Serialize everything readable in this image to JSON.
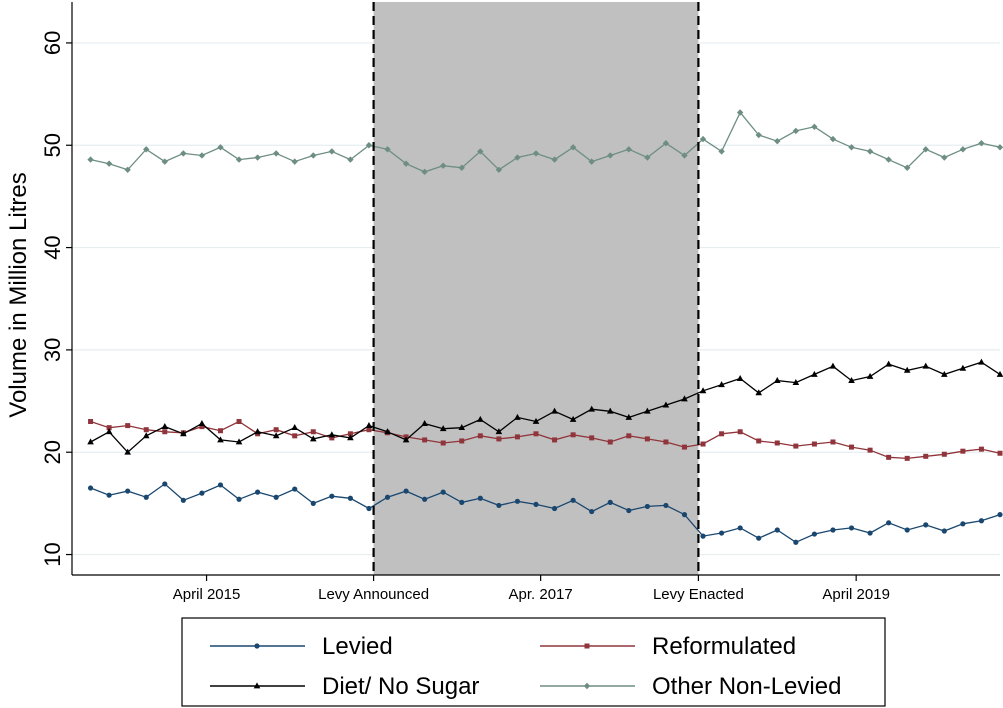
{
  "chart_data": {
    "type": "line",
    "title": "",
    "xlabel": "",
    "ylabel": "Volume in Million Litres",
    "ylim": [
      8,
      64
    ],
    "xlim": [
      0,
      100
    ],
    "y_ticks": [
      10,
      20,
      30,
      40,
      50,
      60
    ],
    "x_ticks": [
      {
        "x": 14.5,
        "label": "April 2015"
      },
      {
        "x": 32.5,
        "label": "Levy Announced"
      },
      {
        "x": 50.5,
        "label": "Apr. 2017"
      },
      {
        "x": 67.5,
        "label": "Levy Enacted"
      },
      {
        "x": 84.5,
        "label": "April 2019"
      }
    ],
    "shaded_region": [
      32.5,
      67.5
    ],
    "event_lines": [
      32.5,
      67.5
    ],
    "grid": true,
    "legend_position": "bottom",
    "series": [
      {
        "name": "Levied",
        "color": "#1a476f",
        "marker": "circle",
        "x": [
          2,
          4,
          6,
          8,
          10,
          12,
          14,
          16,
          18,
          20,
          22,
          24,
          26,
          28,
          30,
          32,
          34,
          36,
          38,
          40,
          42,
          44,
          46,
          48,
          50,
          52,
          54,
          56,
          58,
          60,
          62,
          64,
          66,
          68,
          70,
          72,
          74,
          76,
          78,
          80,
          82,
          84,
          86,
          88,
          90,
          92,
          94,
          96,
          98,
          100
        ],
        "values": [
          16.5,
          15.8,
          16.2,
          15.6,
          16.9,
          15.3,
          16.0,
          16.8,
          15.4,
          16.1,
          15.6,
          16.4,
          15.0,
          15.7,
          15.5,
          14.5,
          15.6,
          16.2,
          15.4,
          16.1,
          15.1,
          15.5,
          14.8,
          15.2,
          14.9,
          14.5,
          15.3,
          14.2,
          15.1,
          14.3,
          14.7,
          14.8,
          13.9,
          11.8,
          12.1,
          12.6,
          11.6,
          12.4,
          11.2,
          12.0,
          12.4,
          12.6,
          12.1,
          13.1,
          12.4,
          12.9,
          12.3,
          13.0,
          13.3,
          13.9
        ]
      },
      {
        "name": "Reformulated",
        "color": "#90353b",
        "marker": "square",
        "x": [
          2,
          4,
          6,
          8,
          10,
          12,
          14,
          16,
          18,
          20,
          22,
          24,
          26,
          28,
          30,
          32,
          34,
          36,
          38,
          40,
          42,
          44,
          46,
          48,
          50,
          52,
          54,
          56,
          58,
          60,
          62,
          64,
          66,
          68,
          70,
          72,
          74,
          76,
          78,
          80,
          82,
          84,
          86,
          88,
          90,
          92,
          94,
          96,
          98,
          100
        ],
        "values": [
          23.0,
          22.4,
          22.6,
          22.2,
          22.0,
          21.9,
          22.5,
          22.1,
          23.0,
          21.8,
          22.2,
          21.6,
          22.0,
          21.4,
          21.8,
          22.2,
          21.9,
          21.5,
          21.2,
          20.9,
          21.1,
          21.6,
          21.3,
          21.5,
          21.8,
          21.2,
          21.7,
          21.4,
          21.0,
          21.6,
          21.3,
          21.0,
          20.5,
          20.8,
          21.8,
          22.0,
          21.1,
          20.9,
          20.6,
          20.8,
          21.0,
          20.5,
          20.2,
          19.5,
          19.4,
          19.6,
          19.8,
          20.1,
          20.3,
          19.9
        ]
      },
      {
        "name": "Diet/ No Sugar",
        "color": "#000000",
        "marker": "triangle",
        "x": [
          2,
          4,
          6,
          8,
          10,
          12,
          14,
          16,
          18,
          20,
          22,
          24,
          26,
          28,
          30,
          32,
          34,
          36,
          38,
          40,
          42,
          44,
          46,
          48,
          50,
          52,
          54,
          56,
          58,
          60,
          62,
          64,
          66,
          68,
          70,
          72,
          74,
          76,
          78,
          80,
          82,
          84,
          86,
          88,
          90,
          92,
          94,
          96,
          98,
          100
        ],
        "values": [
          21.0,
          22.0,
          20.0,
          21.6,
          22.5,
          21.8,
          22.8,
          21.2,
          21.0,
          22.0,
          21.6,
          22.4,
          21.3,
          21.7,
          21.4,
          22.6,
          22.0,
          21.2,
          22.8,
          22.3,
          22.4,
          23.2,
          22.0,
          23.4,
          23.0,
          24.0,
          23.2,
          24.2,
          24.0,
          23.4,
          24.0,
          24.6,
          25.2,
          26.0,
          26.6,
          27.2,
          25.8,
          27.0,
          26.8,
          27.6,
          28.4,
          27.0,
          27.4,
          28.6,
          28.0,
          28.4,
          27.6,
          28.2,
          28.8,
          27.6
        ]
      },
      {
        "name": "Other Non-Levied",
        "color": "#6e8e84",
        "marker": "diamond",
        "x": [
          2,
          4,
          6,
          8,
          10,
          12,
          14,
          16,
          18,
          20,
          22,
          24,
          26,
          28,
          30,
          32,
          34,
          36,
          38,
          40,
          42,
          44,
          46,
          48,
          50,
          52,
          54,
          56,
          58,
          60,
          62,
          64,
          66,
          68,
          70,
          72,
          74,
          76,
          78,
          80,
          82,
          84,
          86,
          88,
          90,
          92,
          94,
          96,
          98,
          100
        ],
        "values": [
          48.6,
          48.2,
          47.6,
          49.6,
          48.4,
          49.2,
          49.0,
          49.8,
          48.6,
          48.8,
          49.2,
          48.4,
          49.0,
          49.4,
          48.6,
          50.0,
          49.6,
          48.2,
          47.4,
          48.0,
          47.8,
          49.4,
          47.6,
          48.8,
          49.2,
          48.6,
          49.8,
          48.4,
          49.0,
          49.6,
          48.8,
          50.2,
          49.0,
          50.6,
          49.4,
          53.2,
          51.0,
          50.4,
          51.4,
          51.8,
          50.6,
          49.8,
          49.4,
          48.6,
          47.8,
          49.6,
          48.8,
          49.6,
          50.2,
          49.8
        ]
      }
    ]
  }
}
